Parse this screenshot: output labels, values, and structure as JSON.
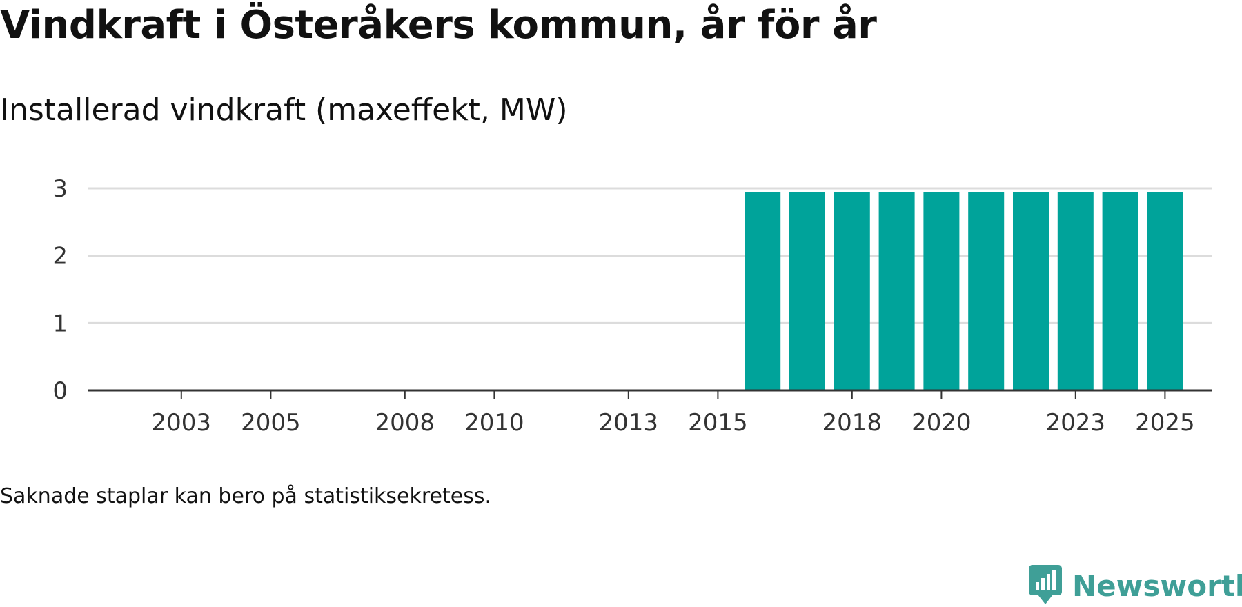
{
  "chart_data": {
    "type": "bar",
    "title": "Vindkraft i Österåkers kommun, år för år",
    "subtitle": "Installerad vindkraft (maxeffekt, MW)",
    "categories": [
      "2002",
      "2003",
      "2004",
      "2005",
      "2006",
      "2007",
      "2008",
      "2009",
      "2010",
      "2011",
      "2012",
      "2013",
      "2014",
      "2015",
      "2016",
      "2017",
      "2018",
      "2019",
      "2020",
      "2021",
      "2022",
      "2023",
      "2024",
      "2025",
      "2026"
    ],
    "values": [
      0,
      0,
      0,
      0,
      0,
      0,
      0,
      0,
      0,
      0,
      0,
      0,
      0,
      0,
      3,
      3,
      3,
      3,
      3,
      3,
      3,
      3,
      3,
      3,
      null
    ],
    "x_tick_labels": [
      "2003",
      "2005",
      "2008",
      "2010",
      "2013",
      "2015",
      "2018",
      "2020",
      "2023",
      "2025"
    ],
    "y_ticks": [
      0,
      1,
      2,
      3
    ],
    "ylim": [
      0,
      3
    ],
    "xlabel": "",
    "ylabel": "",
    "grid": true,
    "bar_color": "#00a39a"
  },
  "note": "Saknade staplar kan bero på statistiksekretess.",
  "brand": {
    "name": "Newsworthy",
    "color": "#3f9f97",
    "icon": "newsworthy-logo-icon"
  }
}
